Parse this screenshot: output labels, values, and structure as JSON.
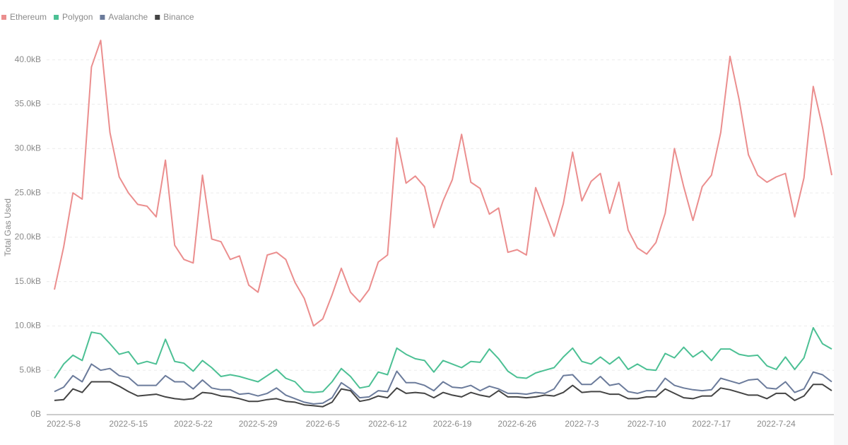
{
  "chart_data": {
    "type": "line",
    "y_label": "Total Gas Used",
    "categories": [
      null,
      "2022-5-8",
      null,
      null,
      null,
      null,
      null,
      null,
      "2022-5-15",
      null,
      null,
      null,
      null,
      null,
      null,
      "2022-5-22",
      null,
      null,
      null,
      null,
      null,
      null,
      "2022-5-29",
      null,
      null,
      null,
      null,
      null,
      null,
      "2022-6-5",
      null,
      null,
      null,
      null,
      null,
      null,
      "2022-6-12",
      null,
      null,
      null,
      null,
      null,
      null,
      "2022-6-19",
      null,
      null,
      null,
      null,
      null,
      null,
      "2022-6-26",
      null,
      null,
      null,
      null,
      null,
      null,
      "2022-7-3",
      null,
      null,
      null,
      null,
      null,
      null,
      "2022-7-10",
      null,
      null,
      null,
      null,
      null,
      null,
      "2022-7-17",
      null,
      null,
      null,
      null,
      null,
      null,
      "2022-7-24",
      null,
      null,
      null,
      null,
      null,
      null
    ],
    "series": [
      {
        "name": "Ethereum",
        "color": "#eb8e8e",
        "values": [
          14.1,
          18.9,
          25.0,
          24.3,
          39.2,
          42.2,
          31.8,
          26.8,
          25.0,
          23.7,
          23.5,
          22.3,
          28.7,
          19.1,
          17.5,
          17.1,
          27.0,
          19.8,
          19.5,
          17.5,
          17.9,
          14.6,
          13.8,
          18.0,
          18.3,
          17.5,
          14.9,
          13.1,
          10.0,
          10.8,
          13.5,
          16.5,
          13.8,
          12.7,
          14.1,
          17.2,
          18.0,
          31.2,
          26.1,
          26.9,
          25.7,
          21.1,
          24.1,
          26.5,
          31.6,
          26.2,
          25.5,
          22.6,
          23.3,
          18.3,
          18.6,
          18.0,
          25.6,
          22.9,
          20.1,
          23.8,
          29.6,
          24.1,
          26.3,
          27.2,
          22.7,
          26.2,
          20.8,
          18.8,
          18.1,
          19.4,
          22.7,
          30.0,
          25.7,
          21.9,
          25.7,
          27.0,
          31.8,
          40.4,
          35.5,
          29.3,
          27.0,
          26.2,
          26.8,
          27.2,
          22.3,
          26.7,
          37.0,
          32.4,
          27.0
        ]
      },
      {
        "name": "Polygon",
        "color": "#4cc094",
        "values": [
          4.1,
          5.7,
          6.7,
          6.1,
          9.3,
          9.1,
          8.0,
          6.8,
          7.1,
          5.7,
          6.0,
          5.7,
          8.5,
          6.0,
          5.8,
          4.9,
          6.1,
          5.3,
          4.3,
          4.5,
          4.3,
          4.0,
          3.7,
          4.4,
          5.1,
          4.1,
          3.7,
          2.6,
          2.5,
          2.6,
          3.7,
          5.2,
          4.3,
          3.0,
          3.2,
          4.8,
          4.5,
          7.5,
          6.8,
          6.3,
          6.1,
          4.8,
          6.1,
          5.7,
          5.3,
          6.0,
          5.9,
          7.4,
          6.3,
          4.9,
          4.2,
          4.1,
          4.7,
          5.0,
          5.3,
          6.5,
          7.5,
          6.0,
          5.7,
          6.5,
          5.7,
          6.5,
          5.1,
          5.7,
          5.1,
          5.0,
          6.9,
          6.4,
          7.6,
          6.5,
          7.2,
          6.1,
          7.4,
          7.4,
          6.8,
          6.6,
          6.7,
          5.5,
          5.1,
          6.5,
          5.1,
          6.4,
          9.8,
          8.0,
          7.4
        ]
      },
      {
        "name": "Avalanche",
        "color": "#6b7b9b",
        "values": [
          2.6,
          3.1,
          4.4,
          3.7,
          5.7,
          5.0,
          5.2,
          4.4,
          4.2,
          3.3,
          3.3,
          3.3,
          4.4,
          3.7,
          3.7,
          2.9,
          3.9,
          3.0,
          2.8,
          2.8,
          2.3,
          2.4,
          2.1,
          2.4,
          3.0,
          2.2,
          1.8,
          1.4,
          1.2,
          1.3,
          1.9,
          3.6,
          2.9,
          1.9,
          2.0,
          2.7,
          2.6,
          4.9,
          3.6,
          3.6,
          3.3,
          2.7,
          3.7,
          3.1,
          3.0,
          3.3,
          2.7,
          3.2,
          2.9,
          2.4,
          2.4,
          2.3,
          2.5,
          2.4,
          2.9,
          4.4,
          4.5,
          3.4,
          3.4,
          4.3,
          3.3,
          3.5,
          2.6,
          2.4,
          2.7,
          2.7,
          4.1,
          3.3,
          3.0,
          2.8,
          2.7,
          2.8,
          4.1,
          3.8,
          3.5,
          3.9,
          4.0,
          3.0,
          2.9,
          3.7,
          2.5,
          2.9,
          4.8,
          4.5,
          3.7
        ]
      },
      {
        "name": "Binance",
        "color": "#444444",
        "values": [
          1.6,
          1.7,
          2.9,
          2.5,
          3.7,
          3.7,
          3.7,
          3.2,
          2.6,
          2.1,
          2.2,
          2.3,
          2.0,
          1.8,
          1.7,
          1.8,
          2.5,
          2.4,
          2.1,
          2.0,
          1.8,
          1.5,
          1.5,
          1.7,
          1.8,
          1.5,
          1.4,
          1.1,
          1.0,
          0.9,
          1.4,
          2.9,
          2.7,
          1.5,
          1.7,
          2.1,
          1.9,
          3.0,
          2.4,
          2.5,
          2.4,
          1.9,
          2.5,
          2.2,
          2.0,
          2.5,
          2.2,
          2.0,
          2.7,
          2.0,
          2.0,
          1.9,
          2.0,
          2.2,
          2.1,
          2.5,
          3.3,
          2.5,
          2.6,
          2.6,
          2.3,
          2.3,
          1.8,
          1.8,
          2.0,
          2.0,
          2.9,
          2.4,
          1.9,
          1.8,
          2.1,
          2.1,
          3.0,
          2.8,
          2.5,
          2.2,
          2.2,
          1.8,
          2.4,
          2.4,
          1.6,
          2.1,
          3.4,
          3.4,
          2.7
        ]
      }
    ],
    "ylim": [
      0,
      45
    ],
    "yticks": [
      {
        "value": 0,
        "label": "0B"
      },
      {
        "value": 5,
        "label": "5.0kB"
      },
      {
        "value": 10,
        "label": "10.0kB"
      },
      {
        "value": 15,
        "label": "15.0kB"
      },
      {
        "value": 20,
        "label": "20.0kB"
      },
      {
        "value": 25,
        "label": "25.0kB"
      },
      {
        "value": 30,
        "label": "30.0kB"
      },
      {
        "value": 35,
        "label": "35.0kB"
      },
      {
        "value": 40,
        "label": "40.0kB"
      }
    ],
    "grid": true
  }
}
